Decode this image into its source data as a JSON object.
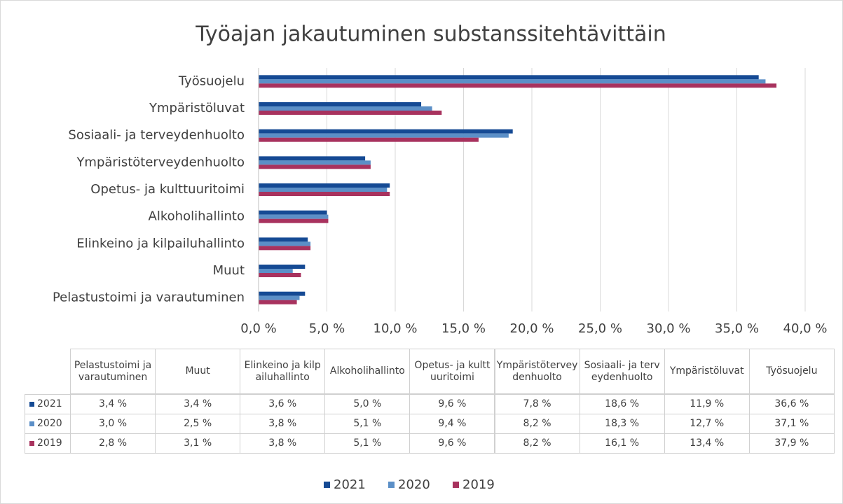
{
  "chart_data": {
    "type": "bar",
    "orientation": "horizontal",
    "title": "Työajan jakautuminen substanssitehtävittäin",
    "categories": [
      "Pelastustoimi ja varautuminen",
      "Muut",
      "Elinkeino ja kilpailuhallinto",
      "Alkoholihallinto",
      "Opetus- ja kulttuuritoimi",
      "Ympäristöterveydenhuolto",
      "Sosiaali- ja terveydenhuolto",
      "Ympäristöluvat",
      "Työsuojelu"
    ],
    "series": [
      {
        "name": "2021",
        "color": "#154a94",
        "values": [
          3.4,
          3.4,
          3.6,
          5.0,
          9.6,
          7.8,
          18.6,
          11.9,
          36.6
        ],
        "value_labels": [
          "3,4 %",
          "3,4 %",
          "3,6 %",
          "5,0 %",
          "9,6 %",
          "7,8 %",
          "18,6 %",
          "11,9 %",
          "36,6 %"
        ]
      },
      {
        "name": "2020",
        "color": "#5b8fc7",
        "values": [
          3.0,
          2.5,
          3.8,
          5.1,
          9.4,
          8.2,
          18.3,
          12.7,
          37.1
        ],
        "value_labels": [
          "3,0 %",
          "2,5 %",
          "3,8 %",
          "5,1 %",
          "9,4 %",
          "8,2 %",
          "18,3 %",
          "12,7 %",
          "37,1 %"
        ]
      },
      {
        "name": "2019",
        "color": "#a8325e",
        "values": [
          2.8,
          3.1,
          3.8,
          5.1,
          9.6,
          8.2,
          16.1,
          13.4,
          37.9
        ],
        "value_labels": [
          "2,8 %",
          "3,1 %",
          "3,8 %",
          "5,1 %",
          "9,6 %",
          "8,2 %",
          "16,1 %",
          "13,4 %",
          "37,9 %"
        ]
      }
    ],
    "xlim": [
      0,
      40
    ],
    "xticks": [
      {
        "value": 0,
        "label": "0,0 %"
      },
      {
        "value": 5,
        "label": "5,0 %"
      },
      {
        "value": 10,
        "label": "10,0 %"
      },
      {
        "value": 15,
        "label": "15,0 %"
      },
      {
        "value": 20,
        "label": "20,0 %"
      },
      {
        "value": 25,
        "label": "25,0 %"
      },
      {
        "value": 30,
        "label": "30,0 %"
      },
      {
        "value": 35,
        "label": "35,0 %"
      },
      {
        "value": 40,
        "label": "40,0 %"
      }
    ],
    "grid": true,
    "legend": "bottom",
    "data_table": true
  }
}
